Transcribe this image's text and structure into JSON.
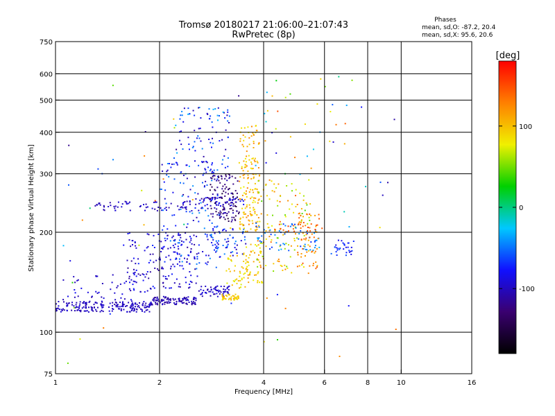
{
  "header": {
    "title_line1": "Tromsø 20180217 21:06:00–21:07:43",
    "title_line2": "RwPretec (8p)",
    "phases_title": "Phases",
    "phases_o": "mean, sd,O: -87.2, 20.4",
    "phases_x": "mean, sd,X:  95.6, 20.6"
  },
  "chart_data": {
    "type": "scatter",
    "title": "Tromsø 20180217 21:06:00–21:07:43",
    "subtitle": "RwPretec (8p)",
    "xlabel": "Frequency [MHz]",
    "ylabel": "Stationary phase Virtual Height [km]",
    "x_scale": "log",
    "y_scale": "log",
    "xlim": [
      1,
      16
    ],
    "ylim": [
      75,
      750
    ],
    "x_ticks": [
      1,
      2,
      4,
      6,
      8,
      10,
      16
    ],
    "x_tick_labels": [
      "1",
      "2",
      "4",
      "6",
      "8",
      "10",
      "16"
    ],
    "x_grid": [
      2,
      4,
      6,
      8,
      10
    ],
    "y_ticks": [
      75,
      100,
      200,
      300,
      400,
      500,
      600,
      750
    ],
    "y_tick_labels": [
      "75",
      "100",
      "200",
      "300",
      "400",
      "500",
      "600",
      "750"
    ],
    "y_grid": [
      100,
      200,
      300,
      400,
      500,
      600
    ],
    "grid": true,
    "colorbar": {
      "label": "[deg]",
      "range": [
        -180,
        180
      ],
      "ticks": [
        100,
        0,
        -100
      ],
      "tick_labels": [
        "100",
        "0",
        "-100"
      ],
      "stops": [
        "#000000",
        "#3a0070",
        "#1010ff",
        "#00c8ff",
        "#00d000",
        "#f0f000",
        "#ff8000",
        "#ff0000"
      ]
    },
    "clusters": [
      {
        "x": [
          1.0,
          1.9
        ],
        "y": [
          115,
          124
        ],
        "phase": [
          -110,
          -90
        ],
        "n": 200
      },
      {
        "x": [
          1.9,
          2.6
        ],
        "y": [
          121,
          128
        ],
        "phase": [
          -115,
          -95
        ],
        "n": 100
      },
      {
        "x": [
          2.6,
          3.2
        ],
        "y": [
          128,
          138
        ],
        "phase": [
          -110,
          -85
        ],
        "n": 60
      },
      {
        "x": [
          1.3,
          2.7
        ],
        "y": [
          232,
          248
        ],
        "phase": [
          -110,
          -90
        ],
        "n": 70
      },
      {
        "x": [
          2.6,
          3.5
        ],
        "y": [
          240,
          255
        ],
        "phase": [
          -120,
          -70
        ],
        "n": 50
      },
      {
        "x": [
          1.05,
          1.9
        ],
        "y": [
          125,
          150
        ],
        "phase": [
          -110,
          -80
        ],
        "n": 50
      },
      {
        "x": [
          1.6,
          2.6
        ],
        "y": [
          135,
          200
        ],
        "phase": [
          -115,
          -70
        ],
        "n": 160
      },
      {
        "x": [
          2.0,
          3.0
        ],
        "y": [
          155,
          330
        ],
        "phase": [
          -110,
          -40
        ],
        "n": 150
      },
      {
        "x": [
          2.2,
          3.2
        ],
        "y": [
          300,
          480
        ],
        "phase": [
          -110,
          -30
        ],
        "n": 90
      },
      {
        "x": [
          2.8,
          3.4
        ],
        "y": [
          215,
          300
        ],
        "phase": [
          -150,
          -100
        ],
        "n": 120
      },
      {
        "x": [
          2.8,
          3.6
        ],
        "y": [
          170,
          210
        ],
        "phase": [
          -110,
          -40
        ],
        "n": 60
      },
      {
        "x": [
          3.0,
          3.4
        ],
        "y": [
          125,
          130
        ],
        "phase": [
          80,
          110
        ],
        "n": 40
      },
      {
        "x": [
          3.1,
          3.6
        ],
        "y": [
          135,
          170
        ],
        "phase": [
          70,
          110
        ],
        "n": 40
      },
      {
        "x": [
          3.4,
          3.9
        ],
        "y": [
          200,
          420
        ],
        "phase": [
          75,
          130
        ],
        "n": 160
      },
      {
        "x": [
          3.5,
          4.0
        ],
        "y": [
          140,
          190
        ],
        "phase": [
          70,
          120
        ],
        "n": 50
      },
      {
        "x": [
          3.8,
          5.5
        ],
        "y": [
          150,
          290
        ],
        "phase": [
          40,
          140
        ],
        "n": 120
      },
      {
        "x": [
          3.8,
          5.8
        ],
        "y": [
          175,
          215
        ],
        "phase": [
          -70,
          -30
        ],
        "n": 60
      },
      {
        "x": [
          5.0,
          5.8
        ],
        "y": [
          155,
          230
        ],
        "phase": [
          100,
          150
        ],
        "n": 60
      },
      {
        "x": [
          4.3,
          6.0
        ],
        "y": [
          200,
          215
        ],
        "phase": [
          120,
          155
        ],
        "n": 20
      },
      {
        "x": [
          6.4,
          7.3
        ],
        "y": [
          170,
          190
        ],
        "phase": [
          -90,
          -60
        ],
        "n": 30
      },
      {
        "x": [
          4.0,
          7.0
        ],
        "y": [
          290,
          620
        ],
        "phase": [
          -100,
          150
        ],
        "n": 30
      },
      {
        "x": [
          1.0,
          10.0
        ],
        "y": [
          80,
          650
        ],
        "phase": [
          -120,
          150
        ],
        "n": 60
      }
    ]
  }
}
